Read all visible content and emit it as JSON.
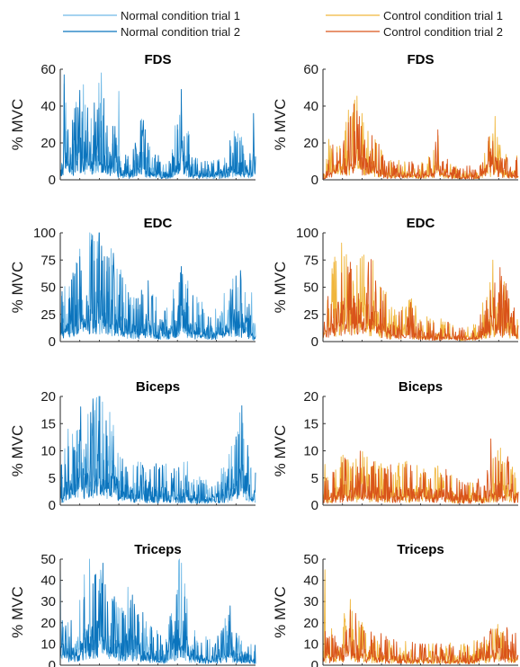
{
  "legend": {
    "normal": [
      {
        "label": "Normal condition trial 1",
        "color": "#6fb9e6"
      },
      {
        "label": "Normal condition trial 2",
        "color": "#0b74bd"
      }
    ],
    "control": [
      {
        "label": "Control condition trial 1",
        "color": "#f0b63c"
      },
      {
        "label": "Control condition trial 2",
        "color": "#d9541a"
      }
    ]
  },
  "chart_data": [
    {
      "type": "line",
      "title": "FDS",
      "ylabel": "% MVC",
      "ylim": [
        0,
        60
      ],
      "yticks": [
        "0",
        "20",
        "40",
        "60"
      ],
      "condition": "normal",
      "series": [
        {
          "name": "Normal condition trial 1",
          "peaks": [
            [
              0.02,
              52
            ],
            [
              0.1,
              38
            ],
            [
              0.21,
              58
            ],
            [
              0.3,
              48
            ],
            [
              0.62,
              38
            ],
            [
              0.93,
              18
            ]
          ]
        },
        {
          "name": "Normal condition trial 2",
          "peaks": [
            [
              0.02,
              57
            ],
            [
              0.14,
              39
            ],
            [
              0.19,
              38
            ],
            [
              0.28,
              29
            ],
            [
              0.62,
              49
            ],
            [
              0.99,
              36
            ]
          ]
        }
      ],
      "envelope": [
        [
          0,
          5
        ],
        [
          0.03,
          18
        ],
        [
          0.06,
          12
        ],
        [
          0.1,
          22
        ],
        [
          0.15,
          15
        ],
        [
          0.2,
          20
        ],
        [
          0.27,
          14
        ],
        [
          0.3,
          6
        ],
        [
          0.36,
          5
        ],
        [
          0.42,
          14
        ],
        [
          0.45,
          8
        ],
        [
          0.5,
          6
        ],
        [
          0.52,
          4
        ],
        [
          0.57,
          4
        ],
        [
          0.61,
          24
        ],
        [
          0.64,
          14
        ],
        [
          0.68,
          5
        ],
        [
          0.74,
          4
        ],
        [
          0.8,
          4
        ],
        [
          0.84,
          5
        ],
        [
          0.88,
          10
        ],
        [
          0.93,
          9
        ],
        [
          0.97,
          6
        ],
        [
          1,
          8
        ]
      ]
    },
    {
      "type": "line",
      "title": "FDS",
      "ylabel": "% MVC",
      "ylim": [
        0,
        60
      ],
      "yticks": [
        "0",
        "20",
        "40",
        "60"
      ],
      "condition": "control",
      "series": [
        {
          "name": "Control condition trial 1",
          "peaks": [
            [
              0.03,
              22
            ],
            [
              0.15,
              33
            ],
            [
              0.2,
              36
            ],
            [
              0.59,
              24
            ],
            [
              0.87,
              25
            ]
          ]
        },
        {
          "name": "Control condition trial 2",
          "peaks": [
            [
              0.05,
              19
            ],
            [
              0.13,
              31
            ],
            [
              0.18,
              30
            ],
            [
              0.27,
              20
            ],
            [
              0.87,
              21
            ]
          ]
        }
      ],
      "envelope": [
        [
          0,
          2
        ],
        [
          0.04,
          8
        ],
        [
          0.08,
          10
        ],
        [
          0.13,
          16
        ],
        [
          0.18,
          18
        ],
        [
          0.23,
          12
        ],
        [
          0.28,
          8
        ],
        [
          0.33,
          4
        ],
        [
          0.38,
          4
        ],
        [
          0.44,
          4
        ],
        [
          0.5,
          4
        ],
        [
          0.55,
          5
        ],
        [
          0.59,
          11
        ],
        [
          0.62,
          5
        ],
        [
          0.68,
          3
        ],
        [
          0.75,
          3
        ],
        [
          0.8,
          3
        ],
        [
          0.84,
          8
        ],
        [
          0.88,
          14
        ],
        [
          0.92,
          7
        ],
        [
          0.96,
          4
        ],
        [
          1,
          5
        ]
      ]
    },
    {
      "type": "line",
      "title": "EDC",
      "ylabel": "% MVC",
      "ylim": [
        0,
        100
      ],
      "yticks": [
        "0",
        "25",
        "50",
        "75",
        "100"
      ],
      "condition": "normal",
      "series": [
        {
          "name": "Normal condition trial 1",
          "peaks": [
            [
              0.16,
              99
            ],
            [
              0.19,
              92
            ],
            [
              0.07,
              60
            ],
            [
              0.98,
              45
            ]
          ]
        },
        {
          "name": "Normal condition trial 2",
          "peaks": [
            [
              0.1,
              78
            ],
            [
              0.24,
              78
            ],
            [
              0.62,
              69
            ],
            [
              0.45,
              56
            ]
          ]
        }
      ],
      "envelope": [
        [
          0,
          18
        ],
        [
          0.05,
          25
        ],
        [
          0.1,
          35
        ],
        [
          0.15,
          42
        ],
        [
          0.2,
          40
        ],
        [
          0.25,
          38
        ],
        [
          0.3,
          26
        ],
        [
          0.35,
          18
        ],
        [
          0.4,
          16
        ],
        [
          0.45,
          24
        ],
        [
          0.5,
          14
        ],
        [
          0.55,
          12
        ],
        [
          0.6,
          22
        ],
        [
          0.62,
          35
        ],
        [
          0.66,
          18
        ],
        [
          0.72,
          14
        ],
        [
          0.78,
          12
        ],
        [
          0.82,
          14
        ],
        [
          0.86,
          22
        ],
        [
          0.9,
          28
        ],
        [
          0.95,
          24
        ],
        [
          1,
          5
        ]
      ]
    },
    {
      "type": "line",
      "title": "EDC",
      "ylabel": "% MVC",
      "ylim": [
        0,
        100
      ],
      "yticks": [
        "0",
        "25",
        "50",
        "75",
        "100"
      ],
      "condition": "control",
      "series": [
        {
          "name": "Control condition trial 1",
          "peaks": [
            [
              0.12,
              80
            ],
            [
              0.2,
              78
            ],
            [
              0.87,
              75
            ],
            [
              0.05,
              62
            ]
          ]
        },
        {
          "name": "Control condition trial 2",
          "peaks": [
            [
              0.14,
              73
            ],
            [
              0.23,
              58
            ],
            [
              0.45,
              36
            ],
            [
              0.88,
              54
            ]
          ]
        }
      ],
      "envelope": [
        [
          0,
          15
        ],
        [
          0.05,
          28
        ],
        [
          0.1,
          35
        ],
        [
          0.15,
          38
        ],
        [
          0.2,
          34
        ],
        [
          0.25,
          30
        ],
        [
          0.3,
          20
        ],
        [
          0.35,
          14
        ],
        [
          0.4,
          12
        ],
        [
          0.45,
          16
        ],
        [
          0.5,
          10
        ],
        [
          0.55,
          8
        ],
        [
          0.6,
          8
        ],
        [
          0.65,
          7
        ],
        [
          0.7,
          5
        ],
        [
          0.75,
          5
        ],
        [
          0.8,
          8
        ],
        [
          0.84,
          20
        ],
        [
          0.88,
          28
        ],
        [
          0.92,
          26
        ],
        [
          0.96,
          18
        ],
        [
          1,
          10
        ]
      ]
    },
    {
      "type": "line",
      "title": "Biceps",
      "ylabel": "% MVC",
      "ylim": [
        0,
        20
      ],
      "yticks": [
        "0",
        "5",
        "10",
        "15",
        "20"
      ],
      "condition": "normal",
      "series": [
        {
          "name": "Normal condition trial 1",
          "peaks": [
            [
              0.2,
              16.5
            ],
            [
              0.04,
              14
            ],
            [
              0.92,
              17
            ]
          ]
        },
        {
          "name": "Normal condition trial 2",
          "peaks": [
            [
              0.17,
              16
            ],
            [
              0.93,
              18.3
            ],
            [
              0.96,
              11
            ],
            [
              1.0,
              6
            ]
          ]
        }
      ],
      "envelope": [
        [
          0,
          3
        ],
        [
          0.05,
          5
        ],
        [
          0.1,
          7
        ],
        [
          0.15,
          8
        ],
        [
          0.2,
          9
        ],
        [
          0.25,
          7
        ],
        [
          0.3,
          4
        ],
        [
          0.35,
          3
        ],
        [
          0.4,
          3
        ],
        [
          0.45,
          3
        ],
        [
          0.5,
          3
        ],
        [
          0.55,
          3
        ],
        [
          0.6,
          3
        ],
        [
          0.65,
          3
        ],
        [
          0.7,
          2
        ],
        [
          0.75,
          2
        ],
        [
          0.8,
          2
        ],
        [
          0.85,
          3
        ],
        [
          0.9,
          5
        ],
        [
          0.93,
          7
        ],
        [
          0.97,
          3
        ],
        [
          1,
          2
        ]
      ]
    },
    {
      "type": "line",
      "title": "Biceps",
      "ylabel": "% MVC",
      "ylim": [
        0,
        20
      ],
      "yticks": [
        "0",
        "5",
        "10",
        "15",
        "20"
      ],
      "condition": "control",
      "series": [
        {
          "name": "Control condition trial 1",
          "peaks": [
            [
              0.01,
              7.5
            ],
            [
              0.92,
              8
            ],
            [
              0.97,
              7
            ]
          ]
        },
        {
          "name": "Control condition trial 2",
          "peaks": [
            [
              0.86,
              12.2
            ],
            [
              0.21,
              7
            ],
            [
              0.35,
              6
            ]
          ]
        }
      ],
      "envelope": [
        [
          0,
          2
        ],
        [
          0.05,
          3
        ],
        [
          0.1,
          3.5
        ],
        [
          0.15,
          3.5
        ],
        [
          0.2,
          4
        ],
        [
          0.25,
          3.5
        ],
        [
          0.3,
          3
        ],
        [
          0.35,
          3
        ],
        [
          0.4,
          3
        ],
        [
          0.45,
          3
        ],
        [
          0.5,
          3
        ],
        [
          0.55,
          3
        ],
        [
          0.6,
          3
        ],
        [
          0.65,
          2.5
        ],
        [
          0.7,
          2
        ],
        [
          0.75,
          2
        ],
        [
          0.8,
          2
        ],
        [
          0.85,
          3
        ],
        [
          0.9,
          4
        ],
        [
          0.95,
          3.5
        ],
        [
          1,
          2.5
        ]
      ]
    },
    {
      "type": "line",
      "title": "Triceps",
      "ylabel": "% MVC",
      "ylim": [
        0,
        50
      ],
      "yticks": [
        "0",
        "10",
        "20",
        "30",
        "40",
        "50"
      ],
      "condition": "normal",
      "series": [
        {
          "name": "Normal condition trial 1",
          "peaks": [
            [
              0.0,
              50
            ],
            [
              0.15,
              50
            ],
            [
              0.21,
              40
            ],
            [
              0.61,
              50
            ]
          ]
        },
        {
          "name": "Normal condition trial 2",
          "peaks": [
            [
              0.01,
              21
            ],
            [
              0.23,
              38
            ],
            [
              0.4,
              24
            ],
            [
              0.87,
              28
            ]
          ]
        }
      ],
      "envelope": [
        [
          0,
          10
        ],
        [
          0.05,
          8
        ],
        [
          0.1,
          14
        ],
        [
          0.15,
          18
        ],
        [
          0.2,
          22
        ],
        [
          0.25,
          16
        ],
        [
          0.3,
          10
        ],
        [
          0.35,
          14
        ],
        [
          0.4,
          12
        ],
        [
          0.45,
          8
        ],
        [
          0.5,
          6
        ],
        [
          0.55,
          6
        ],
        [
          0.6,
          18
        ],
        [
          0.62,
          22
        ],
        [
          0.66,
          8
        ],
        [
          0.72,
          5
        ],
        [
          0.78,
          5
        ],
        [
          0.82,
          6
        ],
        [
          0.86,
          10
        ],
        [
          0.9,
          7
        ],
        [
          0.95,
          5
        ],
        [
          1,
          4
        ]
      ]
    },
    {
      "type": "line",
      "title": "Triceps",
      "ylabel": "% MVC",
      "ylim": [
        0,
        50
      ],
      "yticks": [
        "0",
        "10",
        "20",
        "30",
        "40",
        "50"
      ],
      "condition": "control",
      "series": [
        {
          "name": "Control condition trial 1",
          "peaks": [
            [
              0.01,
              45
            ],
            [
              0.14,
              31
            ],
            [
              0.87,
              17
            ]
          ]
        },
        {
          "name": "Control condition trial 2",
          "peaks": [
            [
              0.02,
              13
            ],
            [
              0.14,
              26
            ],
            [
              0.9,
              14
            ]
          ]
        }
      ],
      "envelope": [
        [
          0,
          8
        ],
        [
          0.05,
          7
        ],
        [
          0.1,
          9
        ],
        [
          0.14,
          12
        ],
        [
          0.18,
          9
        ],
        [
          0.22,
          7
        ],
        [
          0.3,
          6
        ],
        [
          0.4,
          5
        ],
        [
          0.5,
          4
        ],
        [
          0.6,
          4
        ],
        [
          0.7,
          4
        ],
        [
          0.75,
          4
        ],
        [
          0.8,
          5
        ],
        [
          0.85,
          7
        ],
        [
          0.9,
          8
        ],
        [
          0.95,
          7
        ],
        [
          1,
          6
        ]
      ]
    }
  ]
}
